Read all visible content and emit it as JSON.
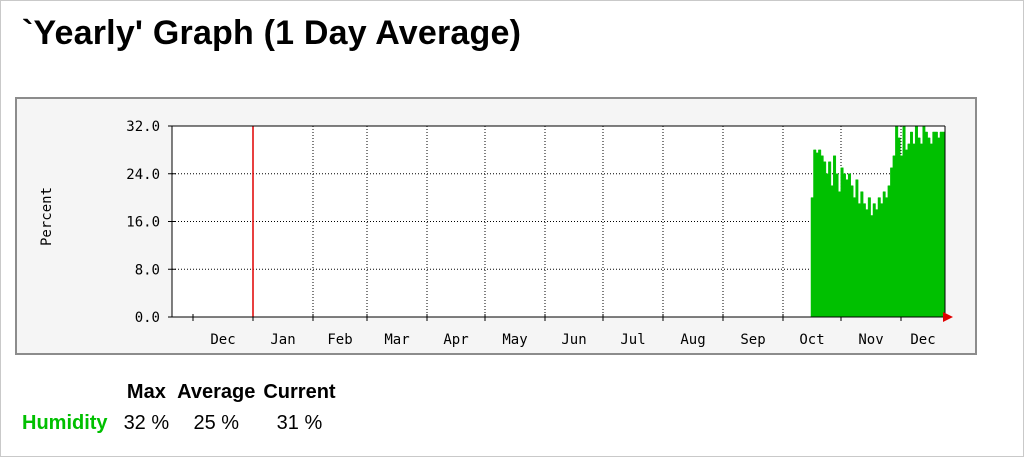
{
  "page": {
    "title": "`Yearly' Graph (1 Day Average)"
  },
  "colors": {
    "series": "#00c000",
    "marker": "#e00000",
    "grid": "#000000",
    "plot_bg": "#ffffff",
    "frame_bg": "#f5f5f5"
  },
  "chart_data": {
    "type": "area",
    "ylabel": "Percent",
    "ylim": [
      0,
      32
    ],
    "yticks": [
      "0.0",
      "8.0",
      "16.0",
      "24.0",
      "32.0"
    ],
    "month_labels": [
      "Dec",
      "Jan",
      "Feb",
      "Mar",
      "Apr",
      "May",
      "Jun",
      "Jul",
      "Aug",
      "Sep",
      "Oct",
      "Nov",
      "Dec"
    ],
    "marker_at": "Jan",
    "grid": true,
    "series": [
      {
        "name": "Humidity",
        "color": "#00c000",
        "x_unit": "day",
        "start_month": "Oct",
        "values": [
          20,
          28,
          27.5,
          28,
          27,
          26,
          24,
          26,
          22,
          27,
          24,
          21,
          25,
          24,
          23,
          24,
          22,
          20,
          23,
          19,
          21,
          19,
          18,
          20,
          17,
          19,
          18,
          20,
          19,
          21,
          20,
          22,
          25,
          27,
          32,
          30,
          27,
          32,
          28,
          29,
          31,
          29,
          32,
          30,
          29,
          32,
          31,
          30,
          29,
          31,
          31,
          30,
          31,
          31
        ]
      }
    ]
  },
  "stats": {
    "headers": [
      "Max",
      "Average",
      "Current"
    ],
    "rows": [
      {
        "label": "Humidity",
        "max": "32 %",
        "average": "25 %",
        "current": "31 %",
        "color": "#00c000"
      }
    ]
  }
}
